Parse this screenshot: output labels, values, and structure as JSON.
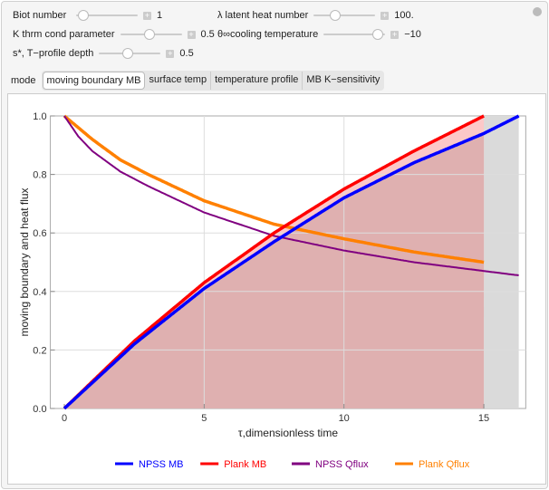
{
  "controls": {
    "biot": {
      "label": "Biot number",
      "value": "1",
      "level": 0.1
    },
    "lambda": {
      "label": "λ latent heat number",
      "value": "100.",
      "level": 0.3
    },
    "k": {
      "label": "K thrm cond parameter",
      "value": "0.5",
      "level": 0.45
    },
    "theta": {
      "label": "θ∞cooling temperature",
      "value": "−10",
      "level": 0.95
    },
    "s": {
      "label": "s*, T−profile depth",
      "value": "0.5",
      "level": 0.45
    }
  },
  "mode": {
    "label": "mode",
    "options": [
      "moving boundary MB",
      "surface temp",
      "temperature profile",
      "MB K−sensitivity"
    ],
    "selected": "moving boundary MB"
  },
  "chart_data": {
    "type": "line",
    "xlabel": "τ,dimensionless time",
    "ylabel": "moving boundary and heat flux",
    "xlim": [
      -0.5,
      16.5
    ],
    "ylim": [
      0,
      1
    ],
    "xticks": [
      "0",
      "5",
      "10",
      "15"
    ],
    "yticks": [
      "0.0",
      "0.2",
      "0.4",
      "0.6",
      "0.8",
      "1.0"
    ],
    "grid": true,
    "legend": "bottom",
    "series": [
      {
        "name": "NPSS MB",
        "color": "#0000ff",
        "x": [
          0,
          2.5,
          5,
          7.5,
          10,
          12.5,
          15,
          16.25
        ],
        "y": [
          0,
          0.22,
          0.41,
          0.57,
          0.72,
          0.84,
          0.94,
          1.0
        ]
      },
      {
        "name": "Plank MB",
        "color": "#ff0000",
        "x": [
          0,
          2.5,
          5,
          7.5,
          10,
          12.5,
          15
        ],
        "y": [
          0,
          0.23,
          0.43,
          0.6,
          0.75,
          0.88,
          1.0
        ]
      },
      {
        "name": "NPSS Qflux",
        "color": "#800080",
        "x": [
          0,
          0.5,
          1,
          2,
          3,
          5,
          7.5,
          10,
          12.5,
          15,
          16.25
        ],
        "y": [
          1,
          0.93,
          0.88,
          0.81,
          0.76,
          0.67,
          0.59,
          0.54,
          0.5,
          0.47,
          0.455
        ]
      },
      {
        "name": "Plank Qflux",
        "color": "#ff8000",
        "x": [
          0,
          1,
          2,
          3,
          5,
          7.5,
          10,
          12.5,
          15
        ],
        "y": [
          1,
          0.92,
          0.85,
          0.8,
          0.71,
          0.63,
          0.58,
          0.535,
          0.5
        ]
      }
    ]
  }
}
